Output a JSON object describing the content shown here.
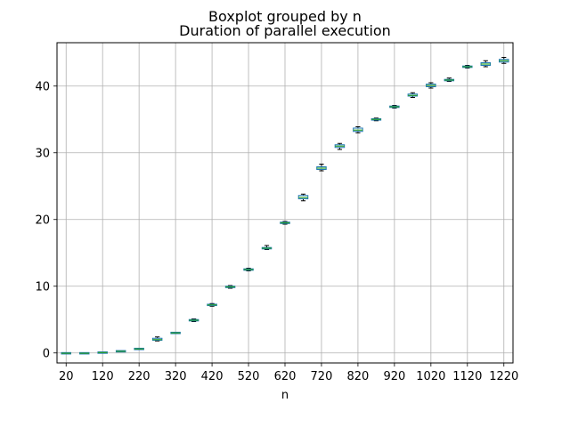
{
  "chart_data": {
    "type": "box",
    "suptitle": "Boxplot grouped by n",
    "title": "Duration of parallel execution",
    "xlabel": "n",
    "ylabel": "",
    "ylim": [
      -1.5,
      46.5
    ],
    "yticks": [
      0,
      10,
      20,
      30,
      40
    ],
    "xtick_labels": [
      "20",
      "120",
      "220",
      "320",
      "420",
      "520",
      "620",
      "720",
      "820",
      "920",
      "1020",
      "1120",
      "1220"
    ],
    "grid": true,
    "colors": {
      "box": "#1f77b4",
      "median": "#2ca02c",
      "whisker": "#000000",
      "grid": "#b0b0b0"
    },
    "categories": [
      "20",
      "70",
      "120",
      "170",
      "220",
      "270",
      "320",
      "370",
      "420",
      "470",
      "520",
      "570",
      "620",
      "670",
      "720",
      "770",
      "820",
      "870",
      "920",
      "970",
      "1020",
      "1070",
      "1120",
      "1170",
      "1220"
    ],
    "boxes": [
      {
        "n": 20,
        "whislo": -0.1,
        "q1": -0.07,
        "med": -0.05,
        "q3": -0.03,
        "whishi": 0.0
      },
      {
        "n": 70,
        "whislo": -0.1,
        "q1": -0.07,
        "med": -0.05,
        "q3": -0.03,
        "whishi": 0.0
      },
      {
        "n": 120,
        "whislo": 0.0,
        "q1": 0.02,
        "med": 0.05,
        "q3": 0.08,
        "whishi": 0.1
      },
      {
        "n": 170,
        "whislo": 0.2,
        "q1": 0.22,
        "med": 0.25,
        "q3": 0.28,
        "whishi": 0.3
      },
      {
        "n": 220,
        "whislo": 0.5,
        "q1": 0.55,
        "med": 0.6,
        "q3": 0.65,
        "whishi": 0.7
      },
      {
        "n": 270,
        "whislo": 1.8,
        "q1": 1.9,
        "med": 2.0,
        "q3": 2.2,
        "whishi": 2.4
      },
      {
        "n": 320,
        "whislo": 2.9,
        "q1": 2.95,
        "med": 3.0,
        "q3": 3.05,
        "whishi": 3.1
      },
      {
        "n": 370,
        "whislo": 4.7,
        "q1": 4.8,
        "med": 4.9,
        "q3": 5.0,
        "whishi": 5.1
      },
      {
        "n": 420,
        "whislo": 7.0,
        "q1": 7.1,
        "med": 7.2,
        "q3": 7.3,
        "whishi": 7.4
      },
      {
        "n": 470,
        "whislo": 9.7,
        "q1": 9.8,
        "med": 9.9,
        "q3": 10.0,
        "whishi": 10.1
      },
      {
        "n": 520,
        "whislo": 12.3,
        "q1": 12.4,
        "med": 12.5,
        "q3": 12.6,
        "whishi": 12.7
      },
      {
        "n": 570,
        "whislo": 15.5,
        "q1": 15.6,
        "med": 15.7,
        "q3": 15.8,
        "whishi": 16.1
      },
      {
        "n": 620,
        "whislo": 19.3,
        "q1": 19.4,
        "med": 19.5,
        "q3": 19.6,
        "whishi": 19.7
      },
      {
        "n": 670,
        "whislo": 22.8,
        "q1": 23.1,
        "med": 23.3,
        "q3": 23.6,
        "whishi": 23.8
      },
      {
        "n": 720,
        "whislo": 27.3,
        "q1": 27.5,
        "med": 27.7,
        "q3": 27.9,
        "whishi": 28.3
      },
      {
        "n": 770,
        "whislo": 30.5,
        "q1": 30.8,
        "med": 31.0,
        "q3": 31.2,
        "whishi": 31.4
      },
      {
        "n": 820,
        "whislo": 33.0,
        "q1": 33.2,
        "med": 33.4,
        "q3": 33.7,
        "whishi": 33.9
      },
      {
        "n": 870,
        "whislo": 34.8,
        "q1": 34.9,
        "med": 35.0,
        "q3": 35.1,
        "whishi": 35.2
      },
      {
        "n": 920,
        "whislo": 36.7,
        "q1": 36.8,
        "med": 36.9,
        "q3": 37.0,
        "whishi": 37.1
      },
      {
        "n": 970,
        "whislo": 38.3,
        "q1": 38.5,
        "med": 38.6,
        "q3": 38.8,
        "whishi": 39.0
      },
      {
        "n": 1020,
        "whislo": 39.7,
        "q1": 39.9,
        "med": 40.1,
        "q3": 40.3,
        "whishi": 40.5
      },
      {
        "n": 1070,
        "whislo": 40.7,
        "q1": 40.8,
        "med": 40.9,
        "q3": 41.0,
        "whishi": 41.2
      },
      {
        "n": 1120,
        "whislo": 42.7,
        "q1": 42.8,
        "med": 42.9,
        "q3": 43.0,
        "whishi": 43.1
      },
      {
        "n": 1170,
        "whislo": 42.9,
        "q1": 43.1,
        "med": 43.3,
        "q3": 43.5,
        "whishi": 43.8
      },
      {
        "n": 1220,
        "whislo": 43.4,
        "q1": 43.6,
        "med": 43.8,
        "q3": 44.0,
        "whishi": 44.3
      }
    ]
  }
}
